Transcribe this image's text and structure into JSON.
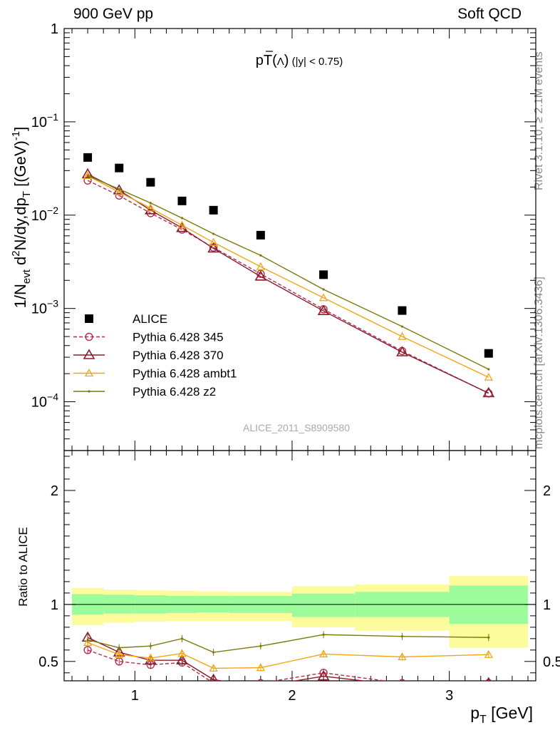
{
  "header": {
    "left": "900 GeV pp",
    "right": "Soft QCD"
  },
  "side_labels": {
    "rivet": "Rivet 3.1.10, ≥ 2.1M events",
    "mcplots": "mcplots.cern.ch [arXiv:1306.3436]"
  },
  "colors": {
    "alice": "#000000",
    "p345": "#b0304a",
    "p370": "#8b1a2e",
    "ambt1": "#f5a512",
    "z2": "#7a7a0a",
    "band_inner": "#9cfc9c",
    "band_outer": "#fcfc9c"
  },
  "chart_data": [
    {
      "type": "scatter",
      "title": "pT(Λ̄) (|y| < 0.75)",
      "title_main": "pT(",
      "title_sym": "Λ",
      "title_close": ")",
      "title_cut": "(|y| < 0.75)",
      "ylabel": "1/N_evt d²N/dy,dp_T [(GeV)⁻¹]",
      "yscale": "log",
      "ylim": [
        3e-05,
        1
      ],
      "xlim": [
        0.55,
        3.55
      ],
      "yticks": [
        {
          "v": 1,
          "base": "1",
          "exp": ""
        },
        {
          "v": 0.1,
          "base": "10",
          "exp": "−1"
        },
        {
          "v": 0.01,
          "base": "10",
          "exp": "−2"
        },
        {
          "v": 0.001,
          "base": "10",
          "exp": "−3"
        },
        {
          "v": 0.0001,
          "base": "10",
          "exp": "−4"
        }
      ],
      "watermark": "ALICE_2011_S8909580",
      "legend_position": "bottom-left",
      "series": [
        {
          "name": "ALICE",
          "style": "square",
          "x": [
            0.7,
            0.9,
            1.1,
            1.3,
            1.5,
            1.8,
            2.2,
            2.7,
            3.25
          ],
          "y": [
            0.0415,
            0.032,
            0.0225,
            0.0142,
            0.0113,
            0.0061,
            0.0023,
            0.00095,
            0.00033
          ]
        },
        {
          "name": "Pythia 6.428 345",
          "style": "circle-dashed",
          "x": [
            0.7,
            0.9,
            1.1,
            1.3,
            1.5,
            1.8,
            2.2,
            2.7,
            3.25
          ],
          "y": [
            0.0235,
            0.0162,
            0.0105,
            0.007,
            0.0045,
            0.00235,
            0.00098,
            0.00035,
            0.000123
          ]
        },
        {
          "name": "Pythia 6.428 370",
          "style": "triangle-large",
          "x": [
            0.7,
            0.9,
            1.1,
            1.3,
            1.5,
            1.8,
            2.2,
            2.7,
            3.25
          ],
          "y": [
            0.0275,
            0.0185,
            0.0113,
            0.0073,
            0.0044,
            0.0022,
            0.00094,
            0.00034,
            0.000124
          ]
        },
        {
          "name": "Pythia 6.428 ambt1",
          "style": "triangle-small",
          "x": [
            0.7,
            0.9,
            1.1,
            1.3,
            1.5,
            1.8,
            2.2,
            2.7,
            3.25
          ],
          "y": [
            0.0265,
            0.0176,
            0.0119,
            0.0078,
            0.0051,
            0.0028,
            0.0013,
            0.0005,
            0.000183
          ]
        },
        {
          "name": "Pythia 6.428 z2",
          "style": "dot",
          "x": [
            0.7,
            0.9,
            1.1,
            1.3,
            1.5,
            1.8,
            2.2,
            2.7,
            3.25
          ],
          "y": [
            0.0265,
            0.019,
            0.0135,
            0.0093,
            0.0063,
            0.0037,
            0.0016,
            0.00064,
            0.000223
          ]
        }
      ]
    },
    {
      "type": "line",
      "ylabel": "Ratio to ALICE",
      "xlabel": "p_T [GeV]",
      "ylim": [
        0.33,
        2.35
      ],
      "xlim": [
        0.55,
        3.55
      ],
      "yticks": [
        0.5,
        1,
        2
      ],
      "xticks": [
        1,
        2,
        3
      ],
      "bands": {
        "edges": [
          0.6,
          0.8,
          1.0,
          1.2,
          1.4,
          1.6,
          2.0,
          2.4,
          3.0,
          3.5
        ],
        "inner_lo": [
          0.91,
          0.92,
          0.92,
          0.925,
          0.93,
          0.925,
          0.89,
          0.89,
          0.83
        ],
        "inner_hi": [
          1.09,
          1.085,
          1.08,
          1.075,
          1.075,
          1.075,
          1.095,
          1.11,
          1.165
        ],
        "outer_lo": [
          0.82,
          0.84,
          0.85,
          0.855,
          0.855,
          0.855,
          0.8,
          0.77,
          0.62
        ],
        "outer_hi": [
          1.145,
          1.13,
          1.125,
          1.12,
          1.115,
          1.11,
          1.16,
          1.175,
          1.25
        ]
      },
      "series": [
        {
          "name": "Pythia 6.428 345",
          "x": [
            0.7,
            0.9,
            1.1,
            1.3,
            1.5,
            1.8,
            2.2,
            2.7,
            3.25
          ],
          "y": [
            0.6,
            0.5,
            0.47,
            0.49,
            0.31,
            0.31,
            0.4,
            0.31,
            0.31
          ]
        },
        {
          "name": "Pythia 6.428 370",
          "x": [
            0.7,
            0.9,
            1.1,
            1.3,
            1.5,
            1.8,
            2.2,
            2.7,
            3.25
          ],
          "y": [
            0.71,
            0.58,
            0.51,
            0.51,
            0.34,
            0.28,
            0.37,
            0.29,
            0.31
          ]
        },
        {
          "name": "Pythia 6.428 ambt1",
          "x": [
            0.7,
            0.9,
            1.1,
            1.3,
            1.5,
            1.8,
            2.2,
            2.7,
            3.25
          ],
          "y": [
            0.665,
            0.56,
            0.53,
            0.57,
            0.44,
            0.445,
            0.565,
            0.54,
            0.56
          ]
        },
        {
          "name": "Pythia 6.428 z2",
          "x": [
            0.7,
            0.9,
            1.1,
            1.3,
            1.5,
            1.8,
            2.2,
            2.7,
            3.25
          ],
          "y": [
            0.69,
            0.62,
            0.635,
            0.7,
            0.58,
            0.635,
            0.735,
            0.72,
            0.71
          ]
        }
      ]
    }
  ]
}
